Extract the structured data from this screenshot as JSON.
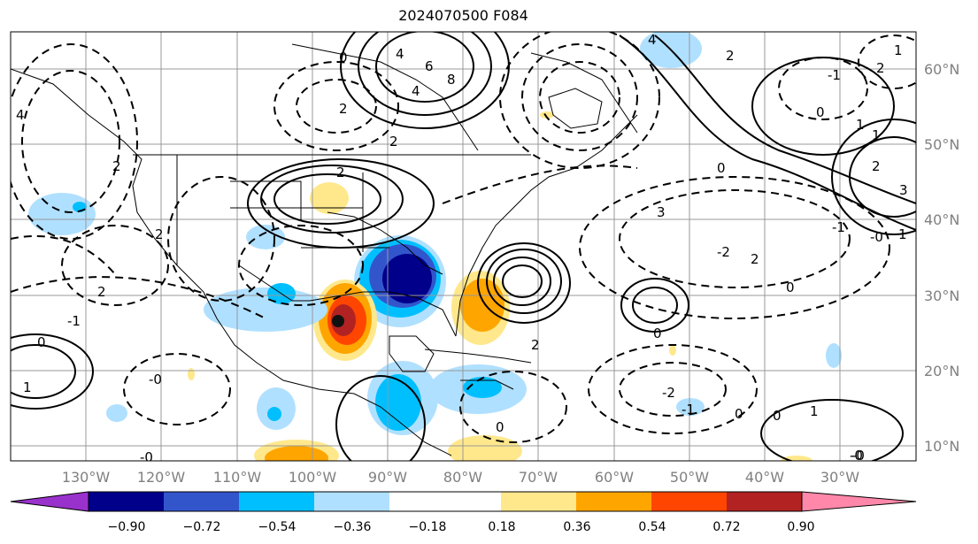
{
  "title": "2024070500 F084",
  "map": {
    "lon_labels": [
      "130°W",
      "120°W",
      "110°W",
      "100°W",
      "90°W",
      "80°W",
      "70°W",
      "60°W",
      "50°W",
      "40°W",
      "30°W"
    ],
    "lat_labels": [
      "60°N",
      "50°N",
      "40°N",
      "30°N",
      "20°N",
      "10°N"
    ],
    "contour_labels": [
      "4",
      "6",
      "8",
      "4",
      "0",
      "2",
      "2",
      "4",
      "2",
      "2",
      "0",
      "-0",
      "2",
      "3",
      "-2",
      "2",
      "-1",
      "-0",
      "0",
      "1",
      "2",
      "3",
      "2",
      "0",
      "1",
      "-1",
      "-0",
      "0",
      "1",
      "-1",
      "-2",
      "1",
      "-0",
      "0",
      "-1",
      "4",
      "2",
      "1",
      "2",
      "2",
      "0",
      "1",
      "-0",
      "0",
      "0"
    ]
  },
  "colorbar": {
    "colors": [
      "#9932cc",
      "#00008b",
      "#3355cc",
      "#00bfff",
      "#b0e0ff",
      "#ffffff",
      "#ffe88c",
      "#ffa500",
      "#ff4500",
      "#b22222",
      "#ff88aa"
    ],
    "ticks": [
      "−0.90",
      "−0.72",
      "−0.54",
      "−0.36",
      "−0.18",
      "0.18",
      "0.36",
      "0.54",
      "0.72",
      "0.90"
    ]
  }
}
